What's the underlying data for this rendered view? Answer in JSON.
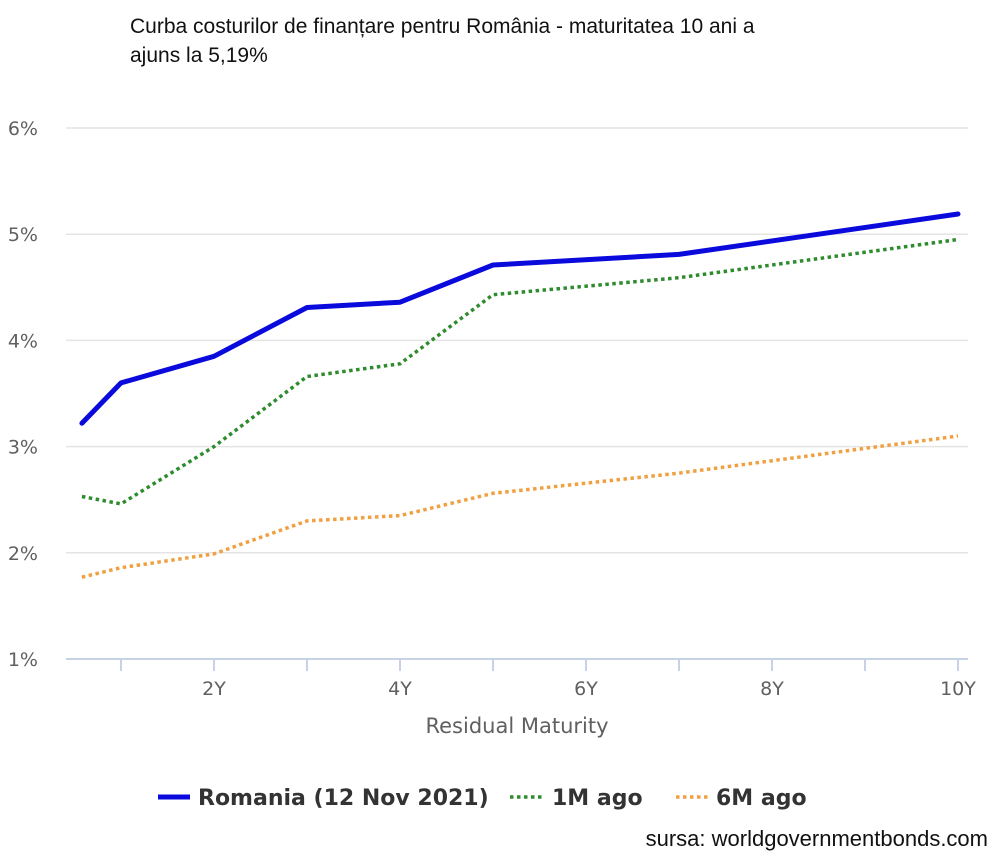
{
  "title_lines": [
    "Curba costurilor de finanțare pentru România - maturitatea 10 ani a",
    "ajuns la 5,19%"
  ],
  "source": "sursa: worldgovernmentbonds.com",
  "colors": {
    "romania": "#0a0adc",
    "one_month": "#2e8b2e",
    "six_month": "#f0a040",
    "grid": "#e4e4e4",
    "axis": "#c8d2e6",
    "tick_text": "#606060"
  },
  "chart_data": {
    "type": "line",
    "xlabel": "Residual Maturity",
    "ylabel": "",
    "x_ticks": [
      {
        "value": 2,
        "label": "2Y"
      },
      {
        "value": 4,
        "label": "4Y"
      },
      {
        "value": 6,
        "label": "6Y"
      },
      {
        "value": 8,
        "label": "8Y"
      },
      {
        "value": 10,
        "label": "10Y"
      }
    ],
    "y_ticks": [
      {
        "value": 1,
        "label": "1%"
      },
      {
        "value": 2,
        "label": "2%"
      },
      {
        "value": 3,
        "label": "3%"
      },
      {
        "value": 4,
        "label": "4%"
      },
      {
        "value": 5,
        "label": "5%"
      },
      {
        "value": 6,
        "label": "6%"
      }
    ],
    "xlim": [
      0.5,
      10
    ],
    "ylim": [
      1,
      6
    ],
    "legend_position": "bottom",
    "series": [
      {
        "name": "Romania (12 Nov 2021)",
        "style": "solid",
        "points": [
          [
            0.58,
            3.22
          ],
          [
            1,
            3.6
          ],
          [
            2,
            3.85
          ],
          [
            3,
            4.31
          ],
          [
            4,
            4.36
          ],
          [
            5,
            4.71
          ],
          [
            7,
            4.81
          ],
          [
            10,
            5.19
          ]
        ]
      },
      {
        "name": "1M ago",
        "style": "dotted",
        "points": [
          [
            0.58,
            2.53
          ],
          [
            1,
            2.46
          ],
          [
            2,
            3.0
          ],
          [
            3,
            3.66
          ],
          [
            4,
            3.78
          ],
          [
            5,
            4.43
          ],
          [
            7,
            4.59
          ],
          [
            10,
            4.95
          ]
        ]
      },
      {
        "name": "6M ago",
        "style": "dotted",
        "points": [
          [
            0.58,
            1.77
          ],
          [
            1,
            1.86
          ],
          [
            2,
            1.99
          ],
          [
            3,
            2.3
          ],
          [
            4,
            2.35
          ],
          [
            5,
            2.56
          ],
          [
            7,
            2.75
          ],
          [
            10,
            3.1
          ]
        ]
      }
    ]
  }
}
